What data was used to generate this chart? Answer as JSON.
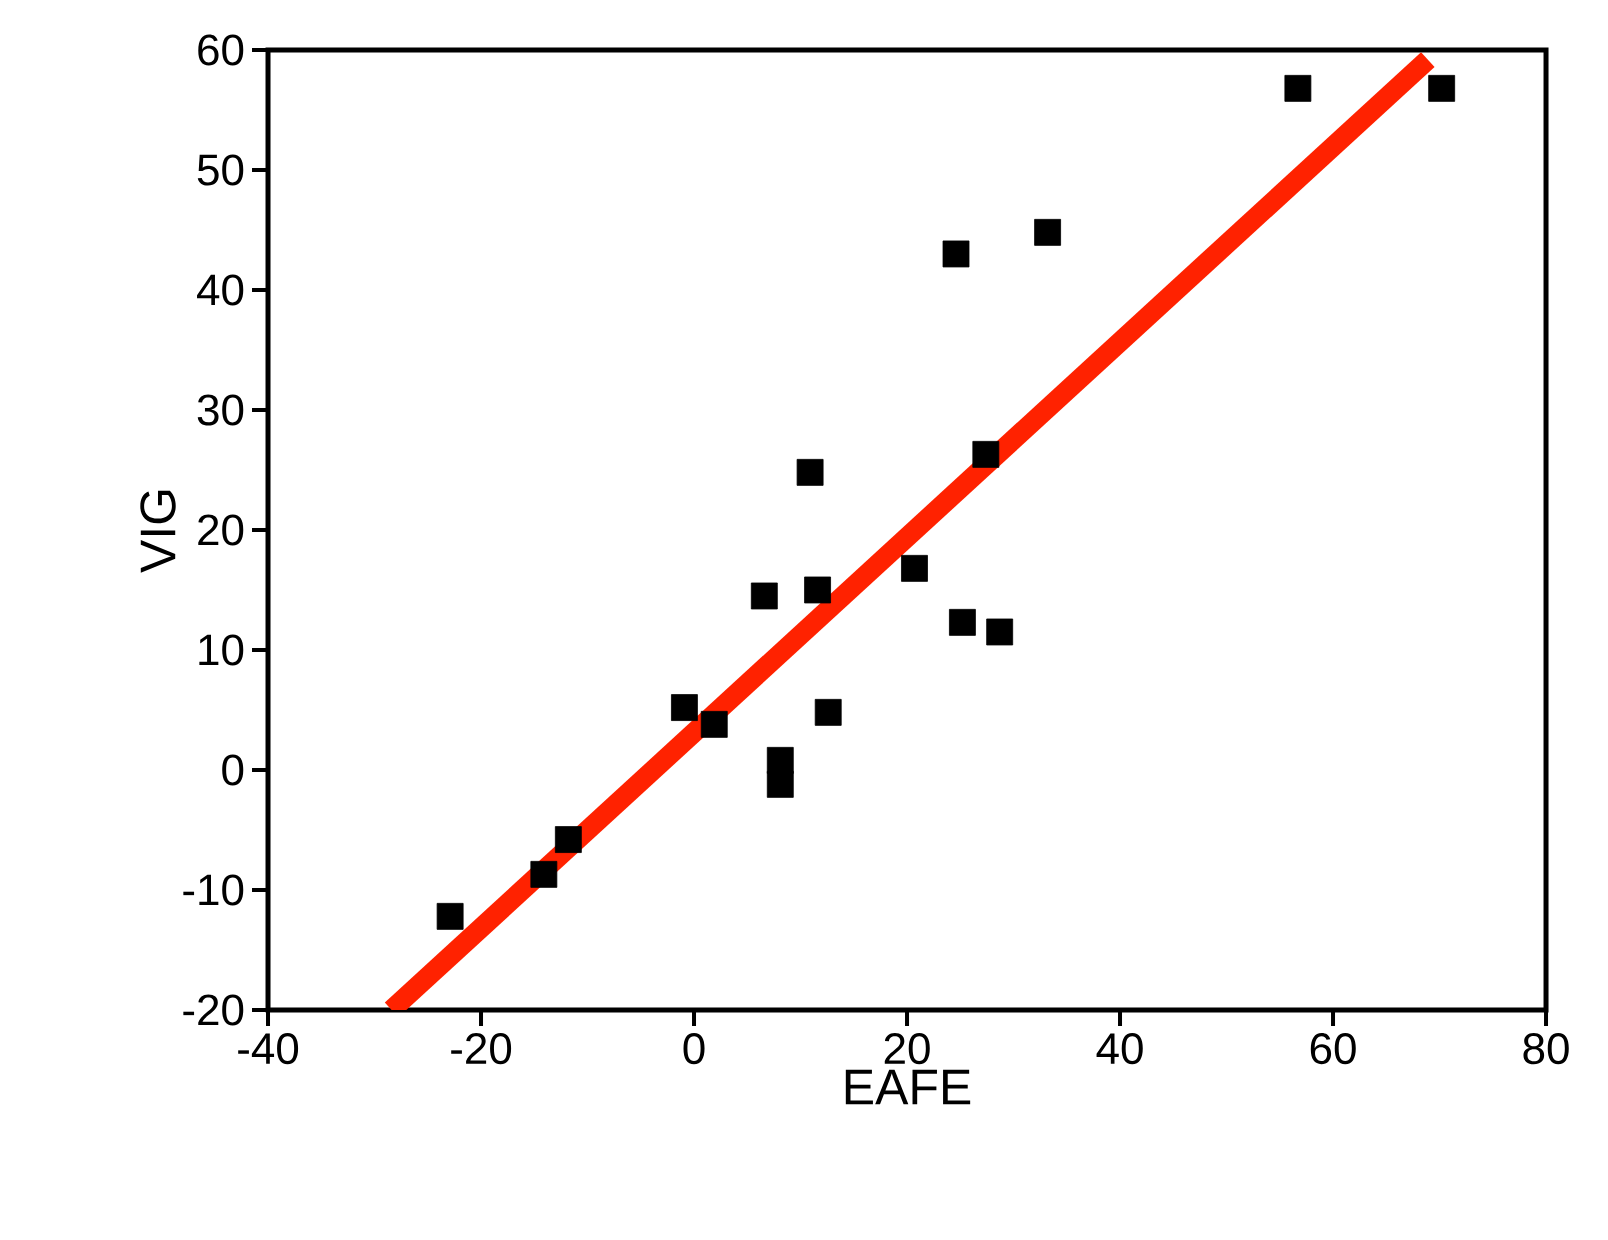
{
  "chart_data": {
    "type": "scatter",
    "xlabel": "EAFE",
    "ylabel": "VIG",
    "xlim": [
      -40,
      80
    ],
    "ylim": [
      -20,
      60
    ],
    "xticks": [
      -40,
      -20,
      0,
      20,
      40,
      60,
      80
    ],
    "yticks": [
      -20,
      -10,
      0,
      10,
      20,
      30,
      40,
      50,
      60
    ],
    "grid": false,
    "marker": "square",
    "series": [
      {
        "color": "#000000",
        "x": [
          -22.9,
          -14.1,
          -11.8,
          -0.9,
          1.9,
          6.6,
          8.1,
          8.1,
          10.9,
          11.6,
          12.6,
          20.7,
          24.6,
          25.2,
          27.4,
          28.7,
          33.2,
          56.7,
          70.2
        ],
        "values": [
          -12.2,
          -8.7,
          -5.8,
          5.2,
          3.8,
          14.5,
          0.8,
          -1.2,
          24.8,
          15.0,
          4.8,
          16.8,
          43.0,
          12.3,
          26.3,
          11.5,
          44.8,
          56.8,
          56.8
        ]
      },
      {
        "type": "line",
        "color": "#ff2200",
        "line_style": "solid",
        "marker": "none",
        "x": [
          -28.4,
          68.9
        ],
        "values": [
          -20,
          59.2
        ]
      }
    ]
  }
}
